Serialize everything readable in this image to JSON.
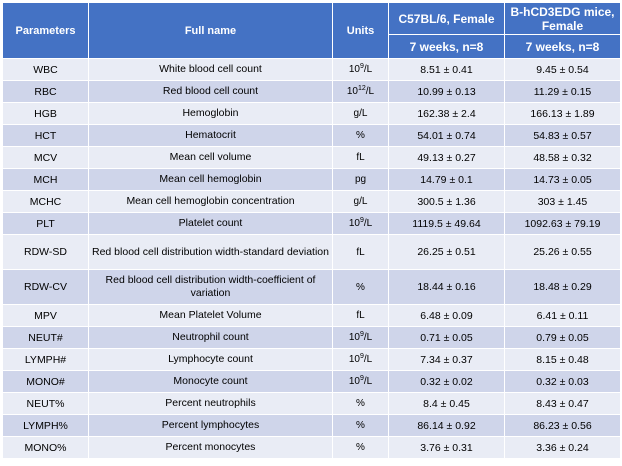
{
  "headers": {
    "parameters": "Parameters",
    "full_name": "Full name",
    "units": "Units",
    "group1": "C57BL/6, Female",
    "group2": "B-hCD3EDG mice, Female",
    "group1_sub": "7 weeks, n=8",
    "group2_sub": "7 weeks, n=8"
  },
  "rows": [
    {
      "param": "WBC",
      "full": "White blood cell count",
      "unit_base": "10",
      "unit_exp": "9",
      "unit_tail": "/L",
      "g1": "8.51 ± 0.41",
      "g2": "9.45 ± 0.54"
    },
    {
      "param": "RBC",
      "full": "Red blood cell count",
      "unit_base": "10",
      "unit_exp": "12",
      "unit_tail": "/L",
      "g1": "10.99 ± 0.13",
      "g2": "11.29 ± 0.15"
    },
    {
      "param": "HGB",
      "full": "Hemoglobin",
      "unit": "g/L",
      "g1": "162.38 ± 2.4",
      "g2": "166.13 ± 1.89"
    },
    {
      "param": "HCT",
      "full": "Hematocrit",
      "unit": "%",
      "g1": "54.01 ± 0.74",
      "g2": "54.83 ± 0.57"
    },
    {
      "param": "MCV",
      "full": "Mean cell volume",
      "unit": "fL",
      "g1": "49.13 ± 0.27",
      "g2": "48.58 ± 0.32"
    },
    {
      "param": "MCH",
      "full": "Mean cell hemoglobin",
      "unit": "pg",
      "g1": "14.79 ± 0.1",
      "g2": "14.73 ± 0.05"
    },
    {
      "param": "MCHC",
      "full": "Mean cell hemoglobin concentration",
      "unit": "g/L",
      "g1": "300.5 ± 1.36",
      "g2": "303 ± 1.45"
    },
    {
      "param": "PLT",
      "full": "Platelet count",
      "unit_base": "10",
      "unit_exp": "9",
      "unit_tail": "/L",
      "g1": "1119.5 ± 49.64",
      "g2": "1092.63 ± 79.19"
    },
    {
      "param": "RDW-SD",
      "full": "Red blood cell distribution width-standard deviation",
      "unit": "fL",
      "g1": "26.25 ± 0.51",
      "g2": "25.26 ± 0.55"
    },
    {
      "param": "RDW-CV",
      "full": "Red blood cell distribution width-coefficient of variation",
      "unit": "%",
      "g1": "18.44 ± 0.16",
      "g2": "18.48 ± 0.29"
    },
    {
      "param": "MPV",
      "full": "Mean Platelet Volume",
      "unit": "fL",
      "g1": "6.48 ± 0.09",
      "g2": "6.41 ± 0.11"
    },
    {
      "param": "NEUT#",
      "full": "Neutrophil count",
      "unit_base": "10",
      "unit_exp": "9",
      "unit_tail": "/L",
      "g1": "0.71 ± 0.05",
      "g2": "0.79 ± 0.05"
    },
    {
      "param": "LYMPH#",
      "full": "Lymphocyte count",
      "unit_base": "10",
      "unit_exp": "9",
      "unit_tail": "/L",
      "g1": "7.34 ± 0.37",
      "g2": "8.15 ± 0.48"
    },
    {
      "param": "MONO#",
      "full": "Monocyte count",
      "unit_base": "10",
      "unit_exp": "9",
      "unit_tail": "/L",
      "g1": "0.32 ± 0.02",
      "g2": "0.32 ± 0.03"
    },
    {
      "param": "NEUT%",
      "full": "Percent neutrophils",
      "unit": "%",
      "g1": "8.4 ± 0.45",
      "g2": "8.43 ± 0.47"
    },
    {
      "param": "LYMPH%",
      "full": "Percent lymphocytes",
      "unit": "%",
      "g1": "86.14 ± 0.92",
      "g2": "86.23 ± 0.56"
    },
    {
      "param": "MONO%",
      "full": "Percent monocytes",
      "unit": "%",
      "g1": "3.76 ± 0.31",
      "g2": "3.36 ± 0.24"
    }
  ]
}
